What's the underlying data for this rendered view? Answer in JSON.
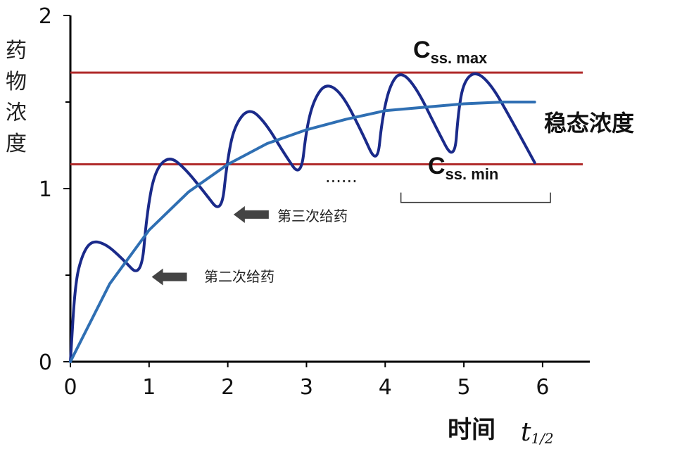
{
  "chart_data": {
    "type": "line",
    "xlabel": "时间",
    "xunit": "t",
    "xunit_sub": "1/2",
    "ylabel": "药物浓度",
    "xlim": [
      0,
      6.6
    ],
    "ylim": [
      0,
      2
    ],
    "x_ticks": [
      0,
      1,
      2,
      3,
      4,
      5,
      6
    ],
    "y_ticks": [
      0,
      1,
      2
    ],
    "y_tick_labels": [
      "0",
      "1",
      "2"
    ],
    "reference_lines": [
      {
        "name": "Css. max",
        "label_main": "C",
        "label_sub": "ss. max",
        "y": 1.67,
        "color": "#b02a2a"
      },
      {
        "name": "Css. min",
        "label_main": "C",
        "label_sub": "ss. min",
        "y": 1.14,
        "color": "#b02a2a"
      }
    ],
    "series": [
      {
        "color": "#1a2a8a",
        "points": [
          [
            0,
            0
          ],
          [
            0.06,
            0.45
          ],
          [
            0.15,
            0.62
          ],
          [
            0.27,
            0.7
          ],
          [
            0.45,
            0.68
          ],
          [
            0.65,
            0.6
          ],
          [
            0.9,
            0.48
          ],
          [
            0.97,
            0.85
          ],
          [
            1.07,
            1.1
          ],
          [
            1.25,
            1.19
          ],
          [
            1.45,
            1.12
          ],
          [
            1.7,
            0.98
          ],
          [
            1.92,
            0.85
          ],
          [
            1.99,
            1.15
          ],
          [
            2.08,
            1.36
          ],
          [
            2.27,
            1.47
          ],
          [
            2.48,
            1.38
          ],
          [
            2.72,
            1.2
          ],
          [
            2.93,
            1.06
          ],
          [
            3.0,
            1.35
          ],
          [
            3.1,
            1.52
          ],
          [
            3.25,
            1.61
          ],
          [
            3.45,
            1.55
          ],
          [
            3.7,
            1.33
          ],
          [
            3.9,
            1.13
          ],
          [
            3.96,
            1.4
          ],
          [
            4.06,
            1.6
          ],
          [
            4.2,
            1.68
          ],
          [
            4.4,
            1.58
          ],
          [
            4.65,
            1.35
          ],
          [
            4.88,
            1.15
          ],
          [
            4.93,
            1.45
          ],
          [
            5.0,
            1.62
          ],
          [
            5.15,
            1.68
          ],
          [
            5.35,
            1.6
          ],
          [
            5.6,
            1.4
          ],
          [
            5.9,
            1.15
          ]
        ]
      },
      {
        "color": "#2f6fb3",
        "points": [
          [
            0,
            0
          ],
          [
            0.5,
            0.45
          ],
          [
            1,
            0.76
          ],
          [
            1.5,
            0.98
          ],
          [
            2,
            1.14
          ],
          [
            2.5,
            1.26
          ],
          [
            3,
            1.34
          ],
          [
            3.5,
            1.4
          ],
          [
            4,
            1.45
          ],
          [
            4.5,
            1.47
          ],
          [
            5,
            1.49
          ],
          [
            5.5,
            1.5
          ],
          [
            5.9,
            1.5
          ]
        ]
      }
    ],
    "annotations": {
      "steady_label": "稳态浓度",
      "dose2_label": "第二次给药",
      "dose3_label": "第三次给药",
      "ellipsis": "......"
    },
    "arrows": [
      {
        "name": "dose2",
        "x": 0.98,
        "y": 0.49
      },
      {
        "name": "dose3",
        "x": 2.02,
        "y": 0.85
      }
    ],
    "bracket": {
      "x_start": 4.2,
      "x_end": 6.1,
      "y": 0.92
    },
    "grid": false,
    "legend": "none"
  }
}
